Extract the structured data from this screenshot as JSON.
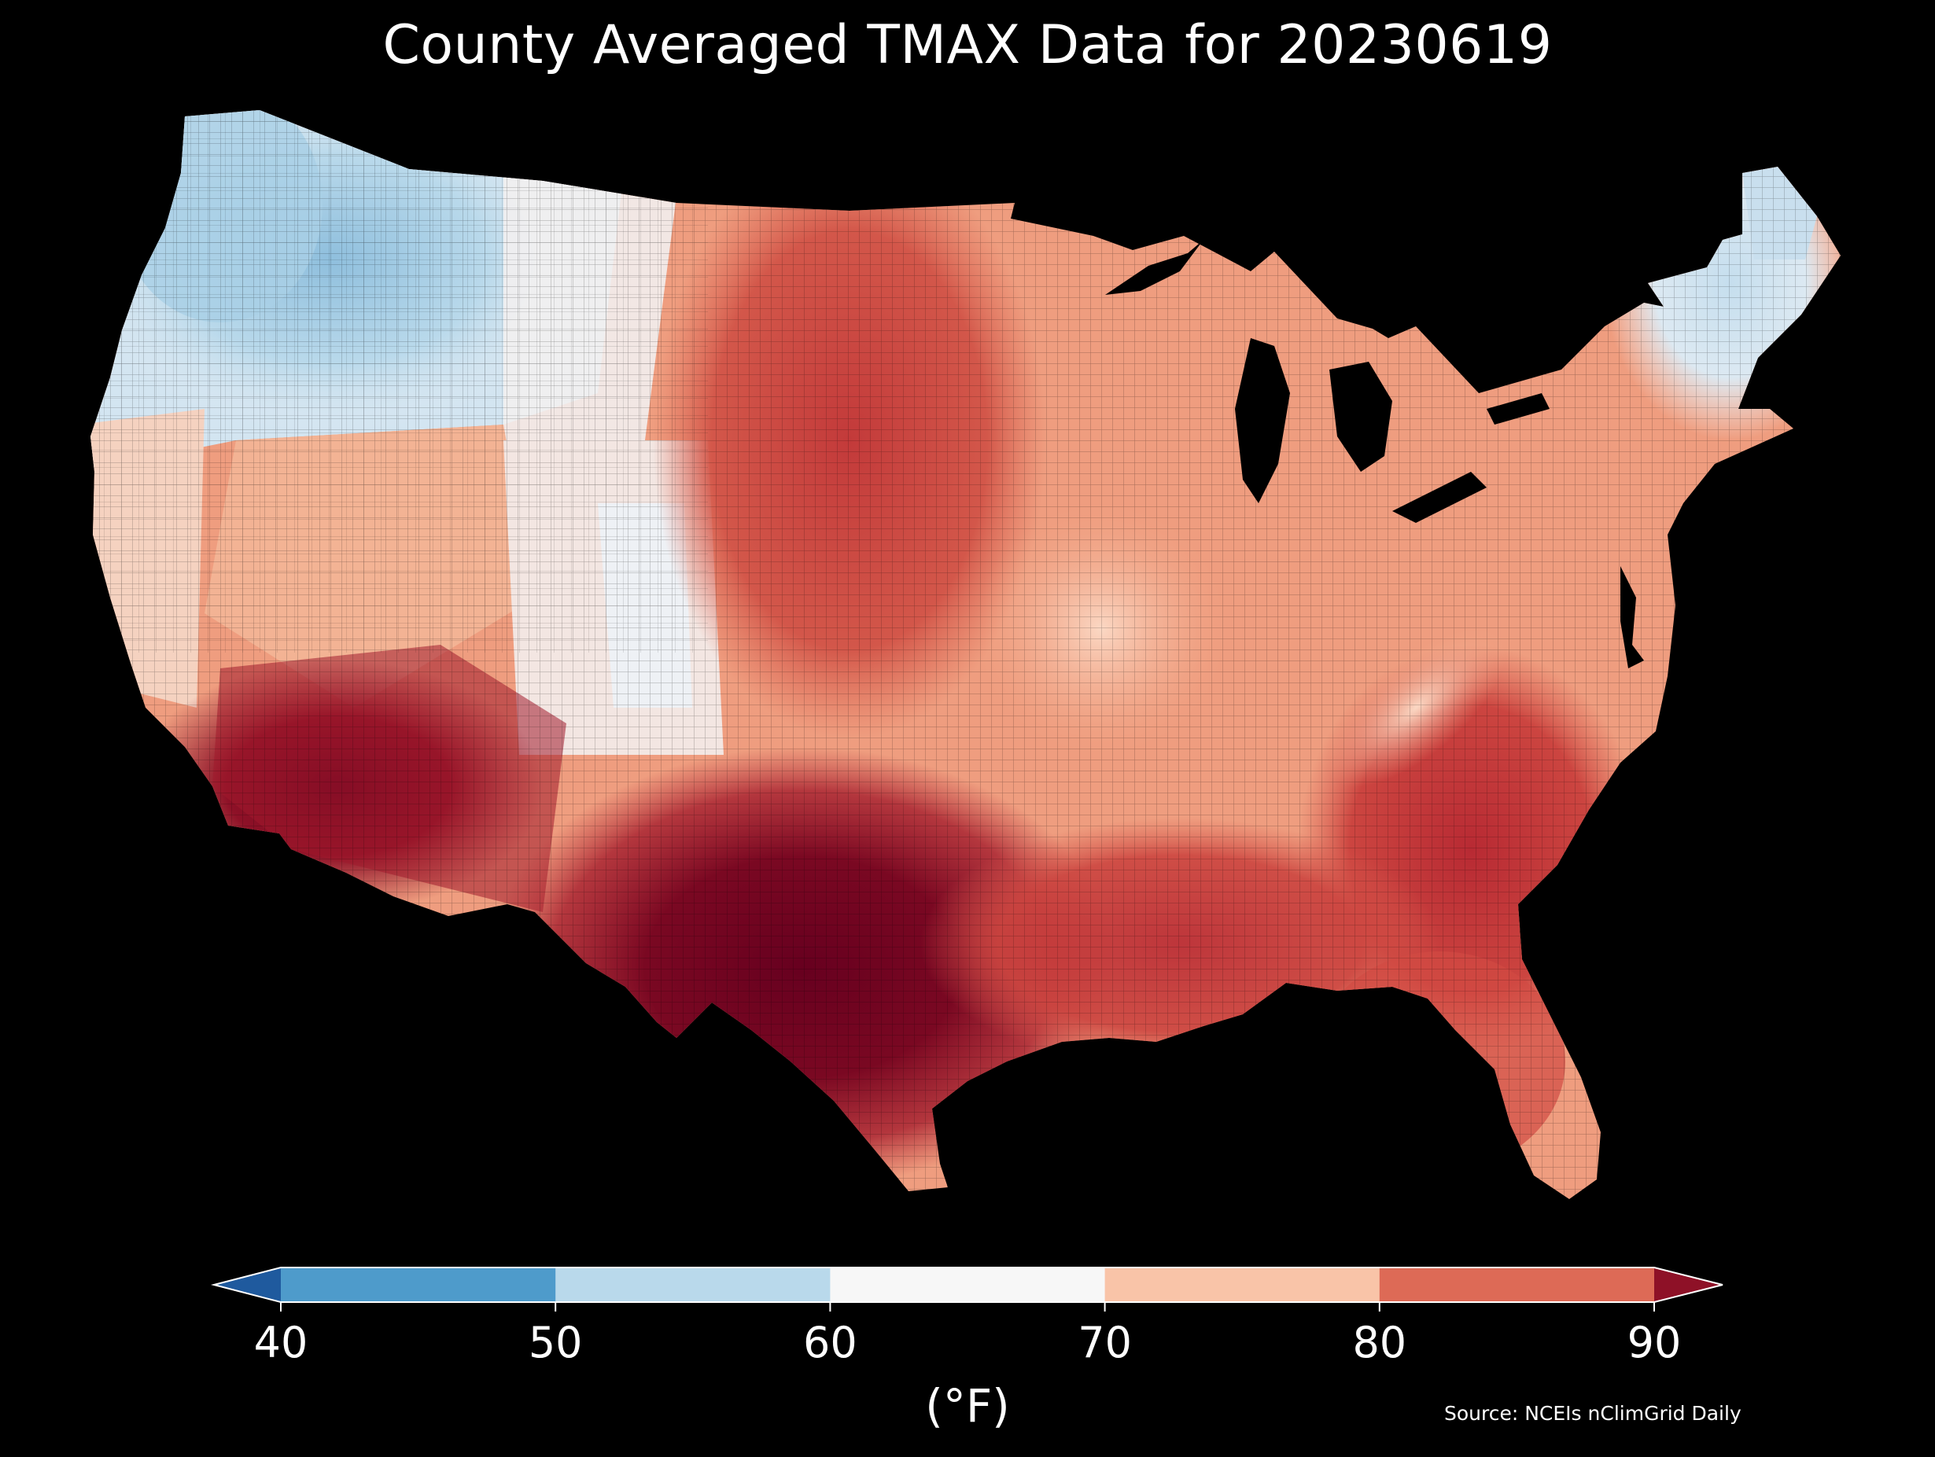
{
  "title": "County Averaged TMAX Data for 20230619",
  "source": "Source: NCEIs nClimGrid Daily",
  "colorbar": {
    "unit_label": "(°F)",
    "ticks": [
      "40",
      "50",
      "60",
      "70",
      "80",
      "90"
    ],
    "bins": [
      {
        "range": "<40",
        "color": "#1f5a9e"
      },
      {
        "range": "40-50",
        "color": "#4e9bcb"
      },
      {
        "range": "50-60",
        "color": "#b9d9eb"
      },
      {
        "range": "60-70",
        "color": "#f7f7f7"
      },
      {
        "range": "70-80",
        "color": "#f9c4a8"
      },
      {
        "range": "80-90",
        "color": "#dd6a56"
      },
      {
        "range": ">90",
        "color": "#8e1127"
      }
    ]
  },
  "map": {
    "region": "Contiguous United States",
    "variable": "TMAX",
    "date": "20230619",
    "background": "#000000",
    "extreme_color": "#67001f"
  }
}
